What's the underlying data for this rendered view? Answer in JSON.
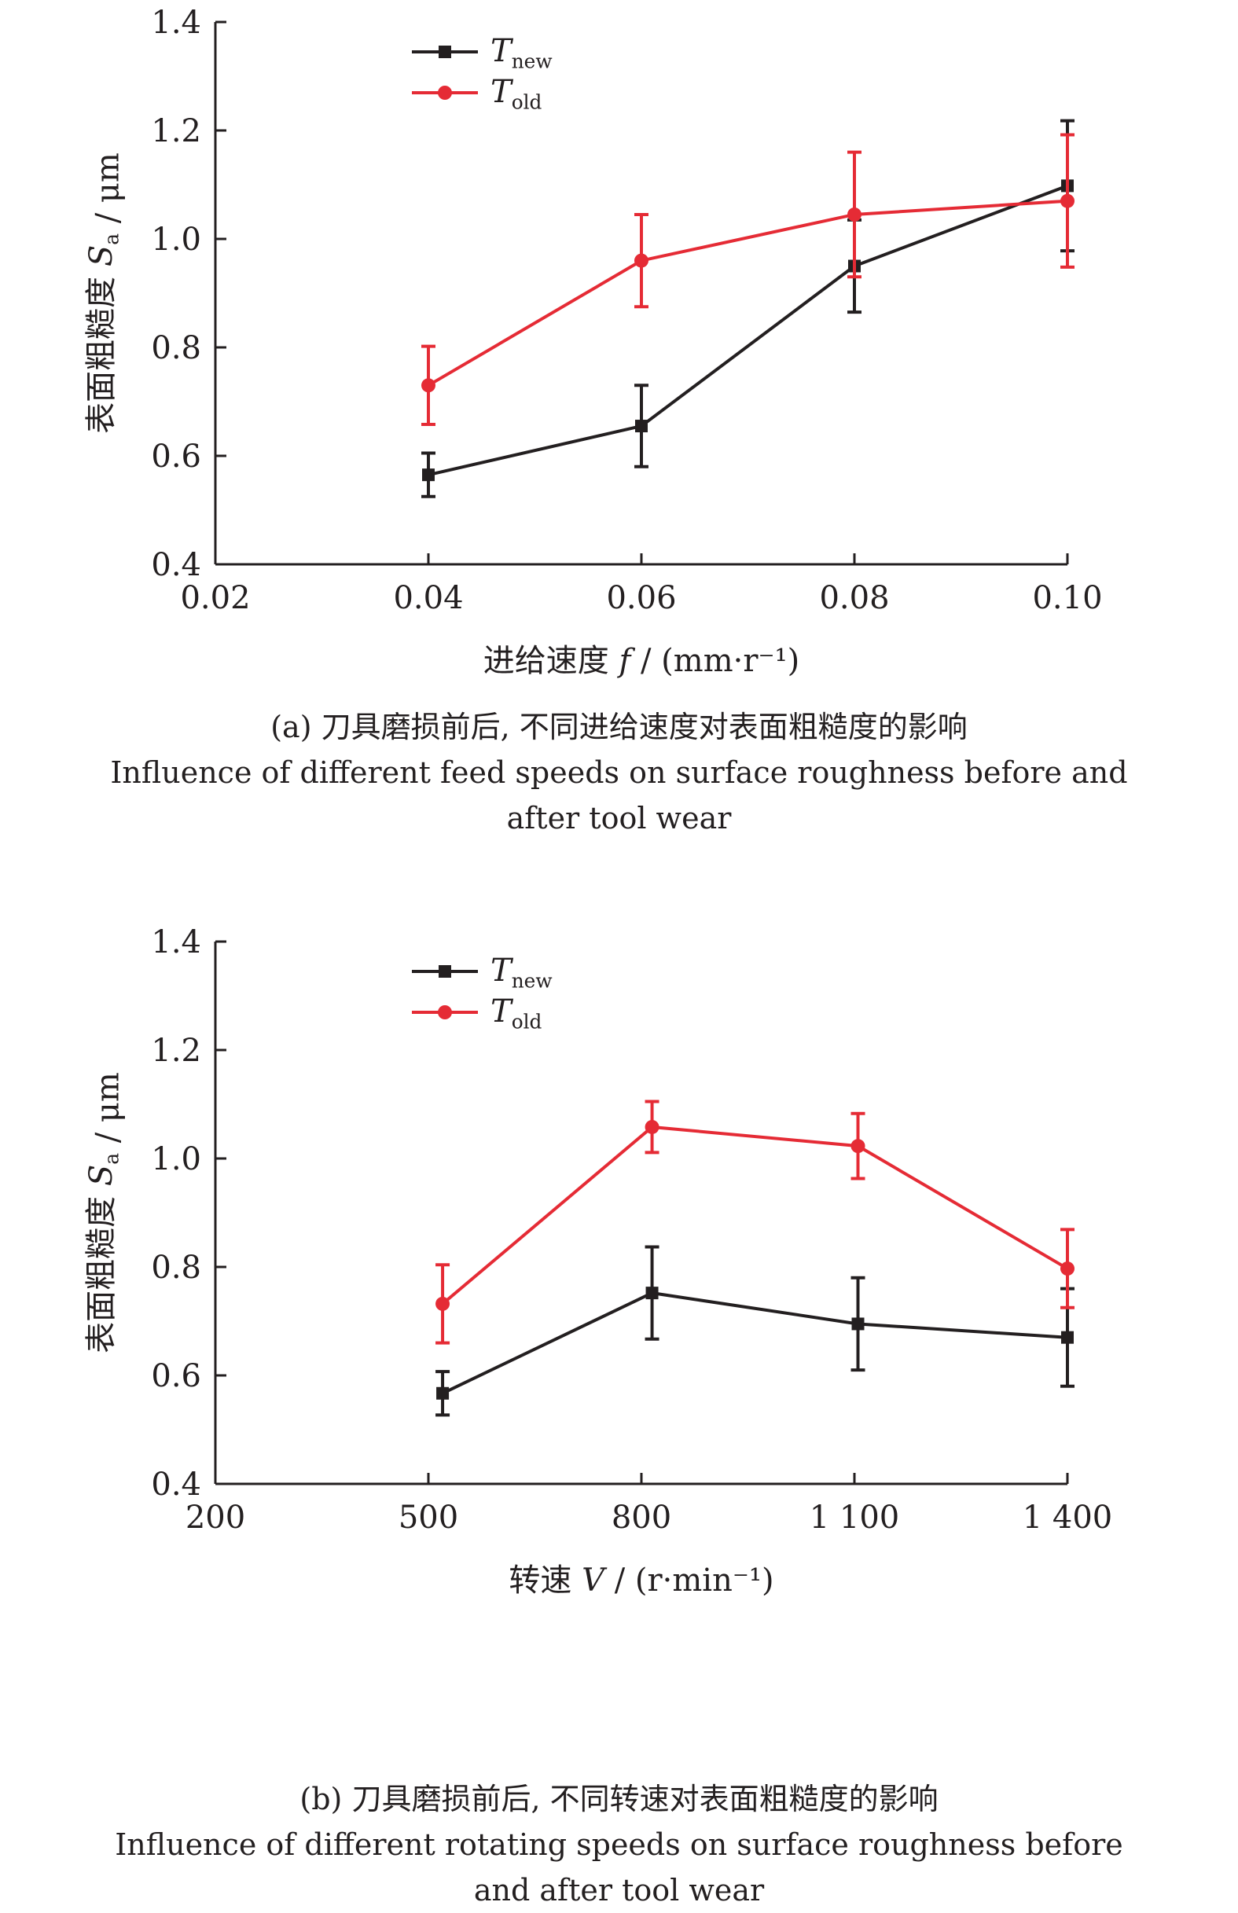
{
  "colors": {
    "new": "#231f20",
    "old": "#e52b35",
    "axis": "#231f20"
  },
  "chart_data": [
    {
      "type": "line",
      "ylabel": "表面粗糙度 S_a / μm",
      "xlabel": "进给速度 f / (mm·r⁻¹)",
      "xlim": [
        0.02,
        0.1
      ],
      "ylim": [
        0.4,
        1.4
      ],
      "xticks": [
        0.02,
        0.04,
        0.06,
        0.08,
        0.1
      ],
      "xtick_labels": [
        "0.02",
        "0.04",
        "0.06",
        "0.08",
        "0.10"
      ],
      "yticks": [
        0.4,
        0.6,
        0.8,
        1.0,
        1.2,
        1.4
      ],
      "ytick_labels": [
        "0.4",
        "0.6",
        "0.8",
        "1.0",
        "1.2",
        "1.4"
      ],
      "legend_position": "top-left",
      "series": [
        {
          "name": "T_new",
          "key": "new",
          "marker": "square",
          "x": [
            0.04,
            0.06,
            0.08,
            0.1
          ],
          "y": [
            0.565,
            0.655,
            0.95,
            1.098
          ],
          "err": [
            0.04,
            0.075,
            0.085,
            0.12
          ]
        },
        {
          "name": "T_old",
          "key": "old",
          "marker": "circle",
          "x": [
            0.04,
            0.06,
            0.08,
            0.1
          ],
          "y": [
            0.73,
            0.96,
            1.045,
            1.07
          ],
          "err": [
            0.072,
            0.085,
            0.115,
            0.122
          ]
        }
      ]
    },
    {
      "type": "line",
      "ylabel": "表面粗糙度 S_a / μm",
      "xlabel": "转速 V / (r·min⁻¹)",
      "xlim": [
        200,
        1400
      ],
      "ylim": [
        0.4,
        1.4
      ],
      "xticks": [
        200,
        500,
        800,
        1100,
        1400
      ],
      "xtick_labels": [
        "200",
        "500",
        "800",
        "1 100",
        "1 400"
      ],
      "yticks": [
        0.4,
        0.6,
        0.8,
        1.0,
        1.2,
        1.4
      ],
      "ytick_labels": [
        "0.4",
        "0.6",
        "0.8",
        "1.0",
        "1.2",
        "1.4"
      ],
      "legend_position": "top-left",
      "series": [
        {
          "name": "T_new",
          "key": "new",
          "marker": "square",
          "x": [
            520,
            815,
            1105,
            1400
          ],
          "y": [
            0.567,
            0.752,
            0.695,
            0.67
          ],
          "err": [
            0.04,
            0.085,
            0.085,
            0.09
          ]
        },
        {
          "name": "T_old",
          "key": "old",
          "marker": "circle",
          "x": [
            520,
            815,
            1105,
            1400
          ],
          "y": [
            0.732,
            1.058,
            1.023,
            0.797
          ],
          "err": [
            0.072,
            0.047,
            0.06,
            0.072
          ]
        }
      ]
    }
  ],
  "captions": {
    "a": {
      "zh": "(a) 刀具磨损前后, 不同进给速度对表面粗糙度的影响",
      "en1": "Influence of different feed speeds on surface roughness before and",
      "en2": "after tool wear"
    },
    "b": {
      "zh": "(b) 刀具磨损前后, 不同转速对表面粗糙度的影响",
      "en1": "Influence of different rotating speeds on surface roughness before",
      "en2": "and after tool wear"
    }
  }
}
